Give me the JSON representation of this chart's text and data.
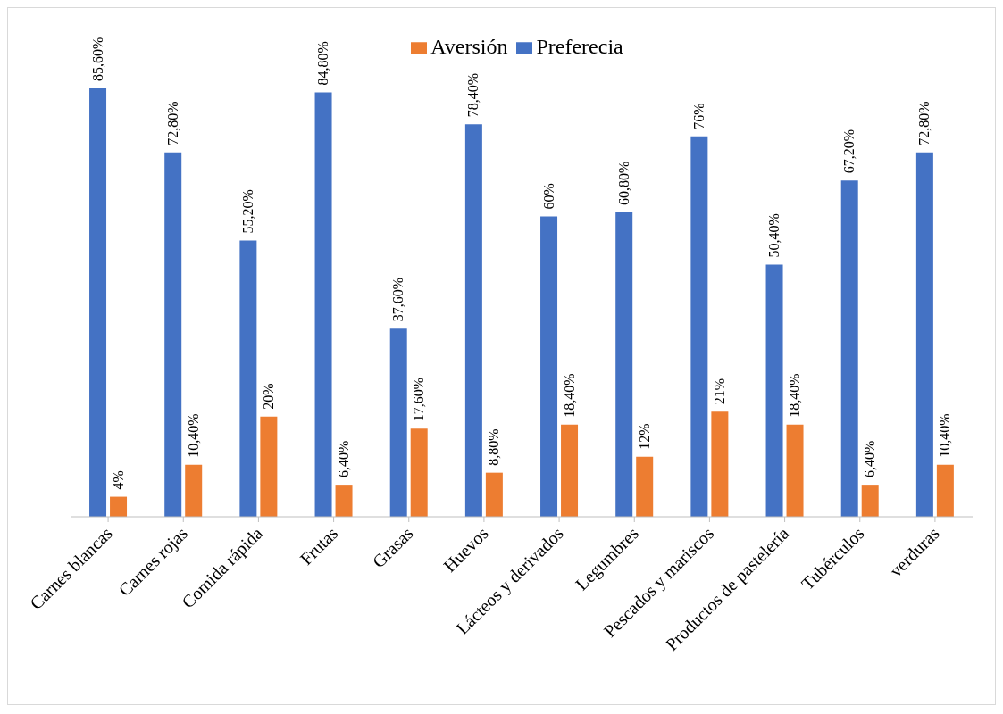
{
  "chart_data": {
    "type": "bar",
    "categories": [
      "Carnes blancas",
      "Carnes rojas",
      "Comida rápida",
      "Frutas",
      "Grasas",
      "Huevos",
      "Lácteos y derivados",
      "Legumbres",
      "Pescados y mariscos",
      "Productos de pastelería",
      "Tubérculos",
      "verduras"
    ],
    "series": [
      {
        "name": "Preferecia",
        "color": "#4472c4",
        "values": [
          85.6,
          72.8,
          55.2,
          84.8,
          37.6,
          78.4,
          60,
          60.8,
          76,
          50.4,
          67.2,
          72.8
        ],
        "value_labels": [
          "85,60%",
          "72,80%",
          "55,20%",
          "84,80%",
          "37,60%",
          "78,40%",
          "60%",
          "60,80%",
          "76%",
          "50,40%",
          "67,20%",
          "72,80%"
        ]
      },
      {
        "name": "Aversión",
        "color": "#ed7d31",
        "values": [
          4,
          10.4,
          20,
          6.4,
          17.6,
          8.8,
          18.4,
          12,
          21,
          18.4,
          6.4,
          10.4
        ],
        "value_labels": [
          "4%",
          "10,40%",
          "20%",
          "6,40%",
          "17,60%",
          "8,80%",
          "18,40%",
          "12%",
          "21%",
          "18,40%",
          "6,40%",
          "10,40%"
        ]
      }
    ],
    "legend": "top",
    "grid": false
  }
}
